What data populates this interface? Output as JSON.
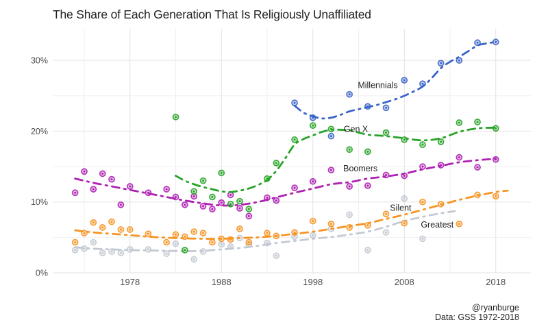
{
  "title": "The Share of Each Generation That Is Religiously Unaffiliated",
  "footer": {
    "credit": "@ryanburge",
    "source": "Data: GSS 1972-2018"
  },
  "chart_data": {
    "type": "scatter",
    "title": "The Share of Each Generation That Is Religiously Unaffiliated",
    "grid": true,
    "legend": "inline-series-labels",
    "x_axis": {
      "range": [
        1969.5,
        2022
      ],
      "ticks": [
        1978,
        1988,
        1998,
        2008,
        2018
      ],
      "tick_labels": [
        "1978",
        "1988",
        "1998",
        "2008",
        "2018"
      ],
      "minor_gridline_years": [
        1973,
        1983,
        1993,
        2003,
        2013
      ]
    },
    "y_axis": {
      "range": [
        0,
        34
      ],
      "ticks": [
        0,
        10,
        20,
        30
      ],
      "tick_labels": [
        "0%",
        "10%",
        "20%",
        "30%"
      ],
      "minor_gridlines": [
        5,
        15,
        25
      ],
      "unit": "percent"
    },
    "series": [
      {
        "name": "Millennials",
        "color": "#3a64c8",
        "label": {
          "text": "Millennials",
          "year": 2005.1,
          "pct": 26.5
        },
        "years": [
          1996,
          1998,
          2000,
          2002,
          2004,
          2006,
          2008,
          2010,
          2012,
          2014,
          2016,
          2018
        ],
        "values": [
          24.0,
          21.9,
          19.3,
          25.2,
          23.5,
          23.3,
          27.2,
          26.7,
          29.6,
          30.0,
          32.5,
          32.6
        ],
        "trend": [
          [
            1996,
            23.6
          ],
          [
            1997,
            22.6
          ],
          [
            1998,
            22.1
          ],
          [
            1999,
            21.8
          ],
          [
            2000,
            21.9
          ],
          [
            2001,
            22.3
          ],
          [
            2002,
            22.8
          ],
          [
            2003,
            23.1
          ],
          [
            2004,
            23.4
          ],
          [
            2005,
            23.7
          ],
          [
            2006,
            24.1
          ],
          [
            2007,
            24.5
          ],
          [
            2008,
            25.0
          ],
          [
            2009,
            25.6
          ],
          [
            2010,
            26.3
          ],
          [
            2011,
            27.5
          ],
          [
            2012,
            28.9
          ],
          [
            2013,
            29.8
          ],
          [
            2014,
            30.5
          ],
          [
            2015,
            31.3
          ],
          [
            2016,
            32.1
          ],
          [
            2017,
            32.4
          ],
          [
            2018,
            32.6
          ]
        ]
      },
      {
        "name": "Gen X",
        "color": "#27a327",
        "label": {
          "text": "Gen X",
          "year": 2002.7,
          "pct": 20.3
        },
        "years": [
          1983,
          1984,
          1985,
          1986,
          1987,
          1988,
          1989,
          1990,
          1991,
          1993,
          1994,
          1996,
          1998,
          2000,
          2002,
          2004,
          2006,
          2008,
          2010,
          2012,
          2014,
          2016,
          2018
        ],
        "values": [
          22.0,
          3.2,
          11.5,
          13.0,
          10.7,
          14.1,
          9.7,
          10.1,
          9.0,
          13.3,
          15.5,
          18.8,
          20.8,
          20.3,
          17.4,
          17.1,
          19.8,
          18.8,
          18.1,
          18.5,
          21.2,
          21.3,
          20.4
        ],
        "trend": [
          [
            1983,
            13.7
          ],
          [
            1984,
            13.0
          ],
          [
            1985,
            12.5
          ],
          [
            1986,
            12.1
          ],
          [
            1987,
            11.8
          ],
          [
            1988,
            11.5
          ],
          [
            1989,
            11.4
          ],
          [
            1990,
            11.6
          ],
          [
            1991,
            11.9
          ],
          [
            1992,
            12.4
          ],
          [
            1993,
            13.1
          ],
          [
            1994,
            14.4
          ],
          [
            1995,
            16.2
          ],
          [
            1996,
            18.1
          ],
          [
            1997,
            18.9
          ],
          [
            1998,
            19.4
          ],
          [
            1999,
            19.9
          ],
          [
            2000,
            20.2
          ],
          [
            2001,
            20.2
          ],
          [
            2002,
            20.1
          ],
          [
            2003,
            19.8
          ],
          [
            2004,
            19.5
          ],
          [
            2005,
            19.4
          ],
          [
            2006,
            19.3
          ],
          [
            2008,
            19.0
          ],
          [
            2010,
            18.7
          ],
          [
            2012,
            19.0
          ],
          [
            2014,
            19.9
          ],
          [
            2016,
            20.4
          ],
          [
            2018,
            20.5
          ]
        ]
      },
      {
        "name": "Boomers",
        "color": "#ae20b2",
        "label": {
          "text": "Boomers",
          "year": 2003.2,
          "pct": 14.7
        },
        "years": [
          1972,
          1973,
          1974,
          1975,
          1976,
          1977,
          1978,
          1980,
          1982,
          1983,
          1984,
          1985,
          1986,
          1987,
          1988,
          1989,
          1990,
          1991,
          1993,
          1994,
          1996,
          1998,
          2000,
          2002,
          2004,
          2006,
          2008,
          2010,
          2012,
          2014,
          2016,
          2018
        ],
        "values": [
          11.3,
          14.3,
          11.8,
          14.0,
          13.2,
          9.6,
          12.2,
          11.3,
          11.8,
          10.7,
          9.6,
          10.8,
          9.4,
          9.0,
          9.9,
          11.0,
          9.1,
          8.0,
          10.6,
          10.2,
          12.0,
          12.9,
          14.5,
          12.2,
          12.3,
          13.8,
          13.7,
          15.0,
          15.2,
          16.3,
          14.9,
          16.0
        ],
        "trend": [
          [
            1972,
            13.3
          ],
          [
            1974,
            12.7
          ],
          [
            1976,
            12.2
          ],
          [
            1978,
            11.7
          ],
          [
            1980,
            11.2
          ],
          [
            1982,
            10.7
          ],
          [
            1984,
            10.2
          ],
          [
            1986,
            9.8
          ],
          [
            1988,
            9.5
          ],
          [
            1990,
            9.6
          ],
          [
            1992,
            10.0
          ],
          [
            1994,
            10.65
          ],
          [
            1996,
            11.3
          ],
          [
            1998,
            11.9
          ],
          [
            2000,
            12.5
          ],
          [
            2002,
            12.8
          ],
          [
            2004,
            13.3
          ],
          [
            2006,
            13.6
          ],
          [
            2008,
            14.0
          ],
          [
            2010,
            14.6
          ],
          [
            2012,
            15.1
          ],
          [
            2014,
            15.6
          ],
          [
            2016,
            15.9
          ],
          [
            2018,
            16.1
          ]
        ]
      },
      {
        "name": "Silent",
        "color": "#f79421",
        "label": {
          "text": "Silent",
          "year": 2007.6,
          "pct": 9.15
        },
        "years": [
          1972,
          1973,
          1974,
          1975,
          1976,
          1977,
          1978,
          1980,
          1982,
          1983,
          1984,
          1985,
          1986,
          1987,
          1988,
          1989,
          1990,
          1991,
          1993,
          1994,
          1996,
          1998,
          2000,
          2002,
          2004,
          2006,
          2008,
          2010,
          2012,
          2014,
          2016,
          2018
        ],
        "values": [
          4.3,
          5.6,
          7.1,
          6.4,
          7.2,
          6.1,
          6.1,
          5.5,
          4.3,
          5.4,
          5.1,
          5.8,
          5.6,
          4.3,
          4.8,
          4.7,
          6.2,
          4.3,
          5.6,
          5.2,
          5.7,
          7.3,
          6.9,
          6.4,
          6.7,
          8.3,
          7.0,
          10.0,
          9.7,
          6.9,
          11.0,
          10.8
        ],
        "trend": [
          [
            1972,
            6.0
          ],
          [
            1974,
            5.7
          ],
          [
            1976,
            5.5
          ],
          [
            1978,
            5.3
          ],
          [
            1980,
            5.1
          ],
          [
            1982,
            4.95
          ],
          [
            1984,
            4.85
          ],
          [
            1986,
            4.8
          ],
          [
            1988,
            4.8
          ],
          [
            1990,
            4.9
          ],
          [
            1992,
            5.0
          ],
          [
            1994,
            5.2
          ],
          [
            1996,
            5.5
          ],
          [
            1998,
            5.8
          ],
          [
            2000,
            6.2
          ],
          [
            2002,
            6.6
          ],
          [
            2004,
            7.0
          ],
          [
            2006,
            7.6
          ],
          [
            2008,
            8.2
          ],
          [
            2010,
            8.9
          ],
          [
            2012,
            9.6
          ],
          [
            2014,
            10.3
          ],
          [
            2016,
            10.9
          ],
          [
            2018,
            11.4
          ],
          [
            2019.3,
            11.6
          ]
        ]
      },
      {
        "name": "Greatest",
        "color": "#c2c9d1",
        "label": {
          "text": "Greatest",
          "year": 2011.6,
          "pct": 6.8
        },
        "years": [
          1972,
          1973,
          1974,
          1975,
          1976,
          1977,
          1978,
          1980,
          1982,
          1983,
          1985,
          1986,
          1988,
          1989,
          1990,
          1991,
          1993,
          1994,
          1996,
          1998,
          2000,
          2002,
          2004,
          2006,
          2008,
          2010
        ],
        "values": [
          3.2,
          3.4,
          4.3,
          2.8,
          3.0,
          2.8,
          3.3,
          3.3,
          2.7,
          4.1,
          1.9,
          3.0,
          4.0,
          3.7,
          4.9,
          4.0,
          4.2,
          2.4,
          5.1,
          5.3,
          6.2,
          8.2,
          3.2,
          5.7,
          10.5,
          4.8
        ],
        "trend": [
          [
            1972,
            3.6
          ],
          [
            1974,
            3.4
          ],
          [
            1976,
            3.3
          ],
          [
            1978,
            3.2
          ],
          [
            1980,
            3.15
          ],
          [
            1982,
            3.1
          ],
          [
            1984,
            3.05
          ],
          [
            1986,
            3.1
          ],
          [
            1988,
            3.3
          ],
          [
            1990,
            3.5
          ],
          [
            1992,
            3.8
          ],
          [
            1994,
            4.2
          ],
          [
            1996,
            4.5
          ],
          [
            1998,
            4.8
          ],
          [
            2000,
            5.05
          ],
          [
            2002,
            5.4
          ],
          [
            2004,
            5.8
          ],
          [
            2006,
            6.5
          ],
          [
            2008,
            7.3
          ],
          [
            2010,
            7.9
          ],
          [
            2012,
            8.4
          ],
          [
            2013.5,
            8.7
          ]
        ]
      }
    ]
  }
}
